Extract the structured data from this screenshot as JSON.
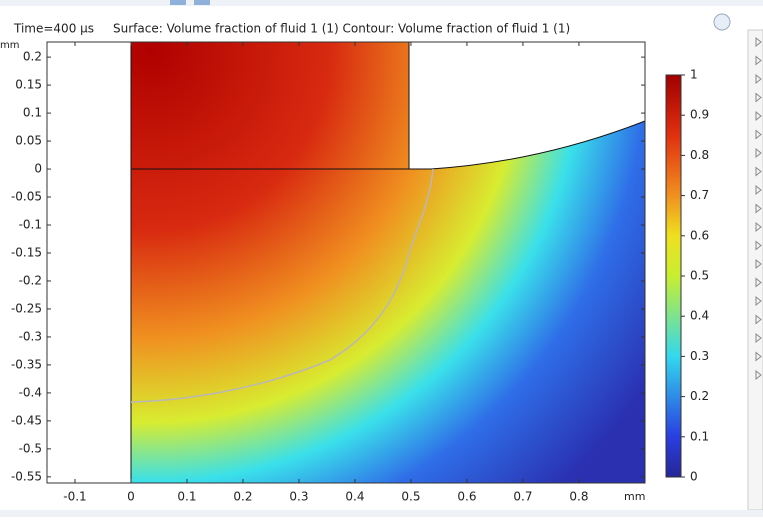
{
  "header": {
    "time": "Time=400 µs",
    "title": "Surface: Volume fraction of fluid 1 (1)  Contour: Volume fraction of fluid 1 (1)"
  },
  "chart_data": {
    "type": "surface",
    "x_unit": "mm",
    "y_unit": "mm",
    "xlim": [
      -0.15,
      0.918
    ],
    "ylim": [
      -0.561,
      0.227
    ],
    "xticks": [
      -0.1,
      0,
      0.1,
      0.2,
      0.3,
      0.4,
      0.5,
      0.6,
      0.7,
      0.8
    ],
    "yticks": [
      0.2,
      0.15,
      0.1,
      0.05,
      0,
      -0.05,
      -0.1,
      -0.15,
      -0.2,
      -0.25,
      -0.3,
      -0.35,
      -0.4,
      -0.45,
      -0.5,
      -0.55
    ],
    "colorbar": {
      "lim": [
        0,
        1
      ],
      "ticks": [
        0,
        0.1,
        0.2,
        0.3,
        0.4,
        0.5,
        0.6,
        0.7,
        0.8,
        0.9,
        1
      ]
    }
  }
}
